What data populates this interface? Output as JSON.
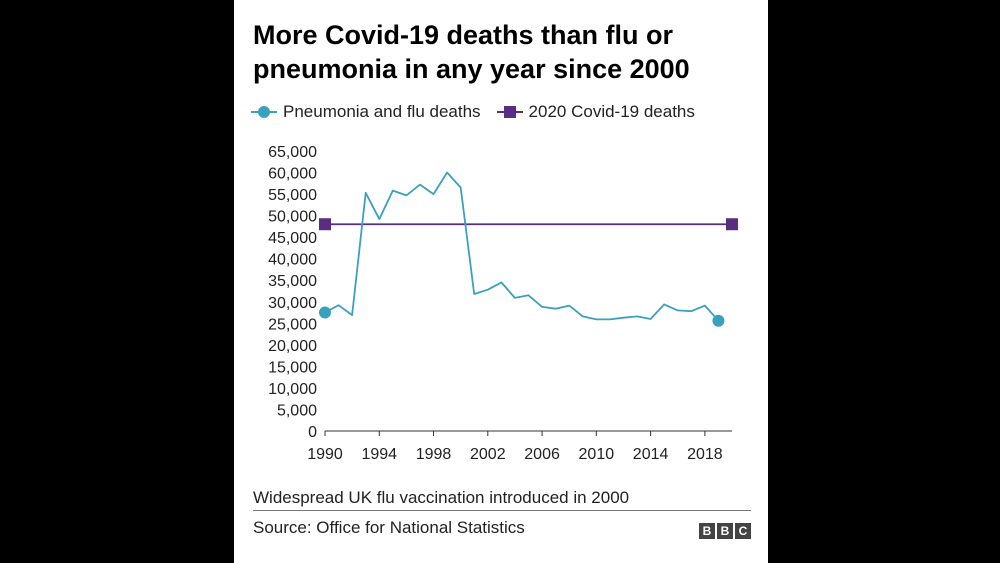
{
  "chart_data": {
    "type": "line",
    "title_lines": [
      "More Covid-19 deaths than flu or",
      "pneumonia in any year since 2000"
    ],
    "x": [
      1990,
      1991,
      1992,
      1993,
      1994,
      1995,
      1996,
      1997,
      1998,
      1999,
      2000,
      2001,
      2002,
      2003,
      2004,
      2005,
      2006,
      2007,
      2008,
      2009,
      2010,
      2011,
      2012,
      2013,
      2014,
      2015,
      2016,
      2017,
      2018,
      2019
    ],
    "series": [
      {
        "name": "Pneumonia and flu deaths",
        "color": "#3aa1bd",
        "marker": "circle",
        "values": [
          27500,
          29200,
          26900,
          55300,
          49200,
          55800,
          54700,
          57200,
          55000,
          60000,
          56500,
          31800,
          32800,
          34500,
          30900,
          31500,
          28800,
          28400,
          29100,
          26600,
          25900,
          25900,
          26300,
          26600,
          26000,
          29400,
          28000,
          27800,
          29100,
          25600
        ]
      },
      {
        "name": "2020 Covid-19 deaths",
        "color": "#5a2d82",
        "marker": "square",
        "constant": 48000
      }
    ],
    "xlim": [
      1990,
      2020
    ],
    "ylim": [
      0,
      65000
    ],
    "y_ticks": [
      "65,000",
      "60,000",
      "55,000",
      "50,000",
      "45,000",
      "40,000",
      "35,000",
      "30,000",
      "25,000",
      "20,000",
      "15,000",
      "10,000",
      "5,000",
      "0"
    ],
    "x_ticks": [
      "1990",
      "1994",
      "1998",
      "2002",
      "2006",
      "2010",
      "2014",
      "2018"
    ],
    "x_tick_values": [
      1990,
      1994,
      1998,
      2002,
      2006,
      2010,
      2014,
      2018
    ],
    "note": "Widespread UK flu vaccination introduced in 2000",
    "source": "Source: Office for National Statistics"
  },
  "branding": {
    "logo_letters": [
      "B",
      "B",
      "C"
    ]
  }
}
